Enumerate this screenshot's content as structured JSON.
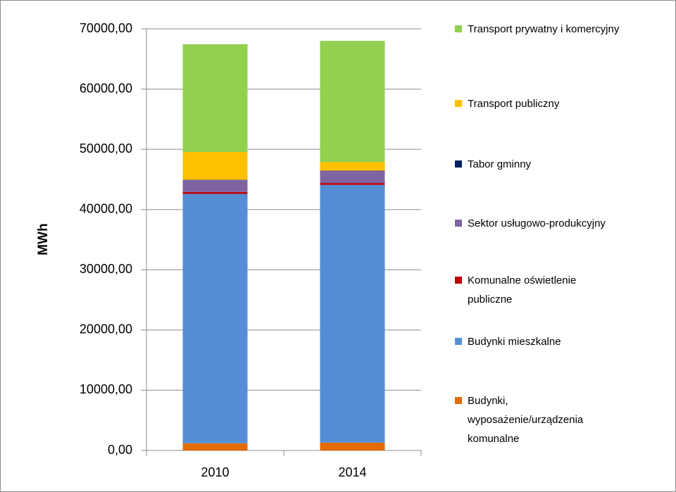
{
  "chart_data": {
    "type": "stacked_bar",
    "y_label": "MWh",
    "categories": [
      "2010",
      "2014"
    ],
    "series": [
      {
        "name": "Budynki, wyposażenie/urządzenia komunalne",
        "color": "#e36c09",
        "values": [
          1200,
          1300
        ]
      },
      {
        "name": "Budynki mieszkalne",
        "color": "#558ed5",
        "values": [
          41400,
          42800
        ]
      },
      {
        "name": "Komunalne oświetlenie publiczne",
        "color": "#c00000",
        "values": [
          300,
          300
        ]
      },
      {
        "name": "Sektor usługowo-produkcyjny",
        "color": "#8064a2",
        "values": [
          2000,
          2000
        ]
      },
      {
        "name": "Tabor gminny",
        "color": "#002060",
        "values": [
          50,
          50
        ]
      },
      {
        "name": "Transport publiczny",
        "color": "#ffc000",
        "values": [
          4600,
          1450
        ]
      },
      {
        "name": "Transport prywatny i komercyjny",
        "color": "#92d050",
        "values": [
          17900,
          20100
        ]
      }
    ],
    "ylim": [
      0,
      70000
    ],
    "yticks": [
      {
        "value": 0,
        "label": "0,00"
      },
      {
        "value": 10000,
        "label": "10000,00"
      },
      {
        "value": 20000,
        "label": "20000,00"
      },
      {
        "value": 30000,
        "label": "30000,00"
      },
      {
        "value": 40000,
        "label": "40000,00"
      },
      {
        "value": 50000,
        "label": "50000,00"
      },
      {
        "value": 60000,
        "label": "60000,00"
      },
      {
        "value": 70000,
        "label": "70000,00"
      }
    ],
    "grid": true,
    "legend": "right"
  }
}
